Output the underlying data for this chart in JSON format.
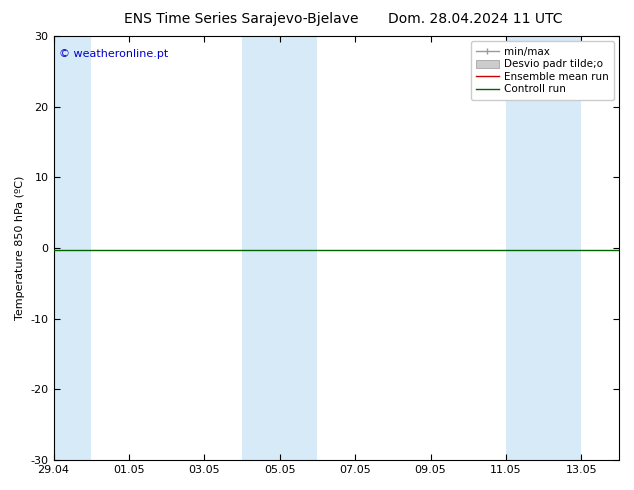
{
  "title_left": "ENS Time Series Sarajevo-Bjelave",
  "title_right": "Dom. 28.04.2024 11 UTC",
  "ylabel": "Temperature 850 hPa (ºC)",
  "ylim": [
    -30,
    30
  ],
  "yticks": [
    -30,
    -20,
    -10,
    0,
    10,
    20,
    30
  ],
  "xtick_labels": [
    "29.04",
    "01.05",
    "03.05",
    "05.05",
    "07.05",
    "09.05",
    "11.05",
    "13.05"
  ],
  "background_color": "#ffffff",
  "plot_bg_color": "#ffffff",
  "shaded_color": "#d6eaf8",
  "control_run_color": "#006400",
  "ensemble_mean_color": "#cc0000",
  "min_max_color": "#999999",
  "std_dev_color": "#cccccc",
  "copyright_text": "© weatheronline.pt",
  "copyright_color": "#0000cc",
  "legend_entry_0": "min/max",
  "legend_entry_1": "Desvio padr tilde;o",
  "legend_entry_2": "Ensemble mean run",
  "legend_entry_3": "Controll run",
  "title_fontsize": 10,
  "axis_fontsize": 8,
  "tick_fontsize": 8,
  "legend_fontsize": 7.5
}
